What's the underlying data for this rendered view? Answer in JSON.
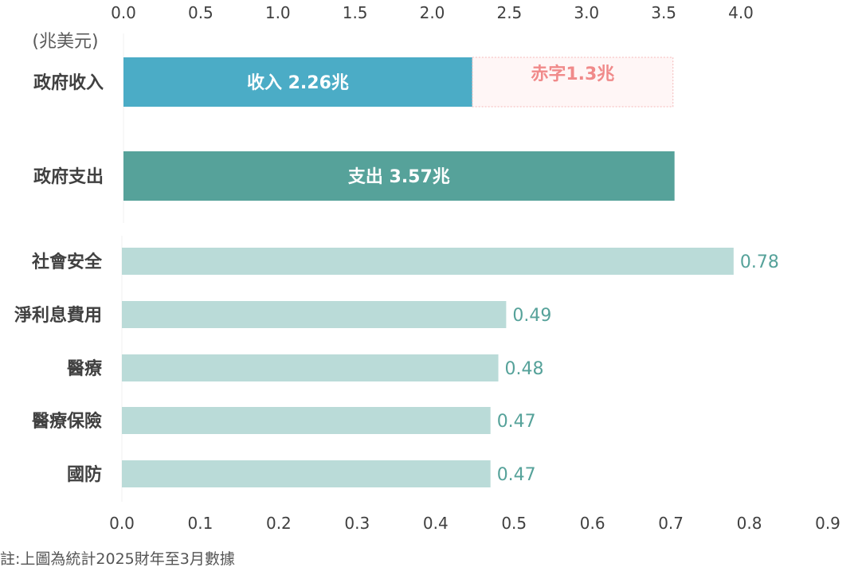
{
  "note": "註:上圖為統計2025財年至3月數據",
  "chart_data": [
    {
      "type": "bar",
      "orientation": "horizontal",
      "stacked": true,
      "unit_label": "(兆美元)",
      "xlim": [
        0,
        4.0
      ],
      "ticks": [
        "0.0",
        "0.5",
        "1.0",
        "1.5",
        "2.0",
        "2.5",
        "3.0",
        "3.5",
        "4.0"
      ],
      "axis_position": "top",
      "grid": false,
      "categories": [
        "政府收入",
        "政府支出"
      ],
      "series": [
        {
          "name": "收入",
          "color": "#4bacc6",
          "values": [
            2.26,
            0
          ],
          "labels": [
            "收入 2.26兆",
            ""
          ]
        },
        {
          "name": "支出",
          "color": "#56a29a",
          "values": [
            0,
            3.57
          ],
          "labels": [
            "",
            "支出 3.57兆"
          ]
        },
        {
          "name": "赤字",
          "color": "#fff6f6",
          "border_color": "#f4b8b8",
          "label_color": "#f08a8a",
          "values": [
            1.3,
            0
          ],
          "labels": [
            "赤字1.3兆",
            ""
          ]
        }
      ]
    },
    {
      "type": "bar",
      "orientation": "horizontal",
      "xlim": [
        0,
        0.9
      ],
      "ticks": [
        "0.0",
        "0.1",
        "0.2",
        "0.3",
        "0.4",
        "0.5",
        "0.6",
        "0.7",
        "0.8",
        "0.9"
      ],
      "axis_position": "bottom",
      "grid": false,
      "bar_color": "#badbd8",
      "label_color": "#56a29a",
      "categories": [
        "社會安全",
        "淨利息費用",
        "醫療",
        "醫療保險",
        "國防"
      ],
      "values": [
        0.78,
        0.49,
        0.48,
        0.47,
        0.47
      ],
      "value_labels": [
        "0.78",
        "0.49",
        "0.48",
        "0.47",
        "0.47"
      ]
    }
  ]
}
